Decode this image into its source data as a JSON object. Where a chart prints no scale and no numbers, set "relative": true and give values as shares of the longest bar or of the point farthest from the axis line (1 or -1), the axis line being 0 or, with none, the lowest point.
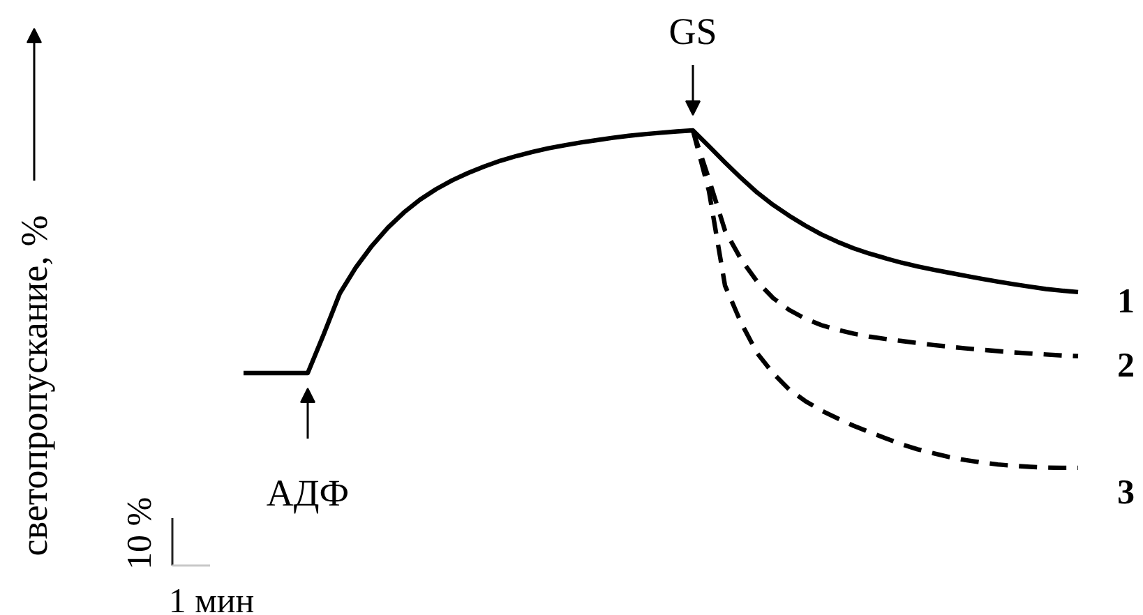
{
  "chart_data": {
    "type": "line",
    "relative": true,
    "ylabel": "светопропускание, %",
    "categories": [
      null,
      null,
      null,
      null,
      null,
      null,
      null,
      null,
      null,
      null,
      null,
      null,
      null,
      null,
      null,
      null,
      null,
      null,
      null,
      null,
      null,
      null,
      null,
      null,
      null,
      null,
      null,
      null,
      null,
      null,
      null,
      null,
      null,
      null,
      null,
      null,
      null,
      null,
      null,
      null,
      null,
      null,
      null,
      null,
      null,
      null,
      null,
      null,
      null,
      null,
      null,
      null,
      null
    ],
    "series": [
      {
        "name": "1",
        "color": "#000000",
        "line_style": "solid",
        "values": [
          0.281,
          0.281,
          0.281,
          0.281,
          0.281,
          0.396,
          0.517,
          0.594,
          0.658,
          0.712,
          0.757,
          0.795,
          0.826,
          0.852,
          0.874,
          0.893,
          0.91,
          0.924,
          0.936,
          0.947,
          0.956,
          0.964,
          0.971,
          0.978,
          0.984,
          0.989,
          0.993,
          0.997,
          1,
          0.953,
          0.905,
          0.859,
          0.816,
          0.779,
          0.747,
          0.718,
          0.692,
          0.67,
          0.651,
          0.635,
          0.621,
          0.608,
          0.597,
          0.587,
          0.578,
          0.569,
          0.56,
          0.552,
          0.544,
          0.537,
          0.53,
          0.525,
          0.521
        ]
      },
      {
        "name": "2",
        "color": "#000000",
        "line_style": "dashed",
        "values": [
          null,
          null,
          null,
          null,
          null,
          null,
          null,
          null,
          null,
          null,
          null,
          null,
          null,
          null,
          null,
          null,
          null,
          null,
          null,
          null,
          null,
          null,
          null,
          null,
          null,
          null,
          null,
          null,
          1,
          0.855,
          0.703,
          0.618,
          0.552,
          0.503,
          0.468,
          0.442,
          0.423,
          0.409,
          0.398,
          0.389,
          0.382,
          0.376,
          0.37,
          0.364,
          0.359,
          0.354,
          0.35,
          0.346,
          0.342,
          0.339,
          0.336,
          0.333,
          0.331
        ]
      },
      {
        "name": "3",
        "color": "#000000",
        "line_style": "dashed",
        "values": [
          null,
          null,
          null,
          null,
          null,
          null,
          null,
          null,
          null,
          null,
          null,
          null,
          null,
          null,
          null,
          null,
          null,
          null,
          null,
          null,
          null,
          null,
          null,
          null,
          null,
          null,
          null,
          null,
          1,
          0.82,
          0.54,
          0.43,
          0.34,
          0.28,
          0.232,
          0.198,
          0.17,
          0.147,
          0.125,
          0.106,
          0.088,
          0.07,
          0.055,
          0.043,
          0.032,
          0.023,
          0.016,
          0.01,
          0.006,
          0.003,
          0.001,
          0,
          0
        ]
      }
    ],
    "annotations": [
      "GS",
      "АДФ",
      "10 %",
      "1 мин"
    ]
  }
}
